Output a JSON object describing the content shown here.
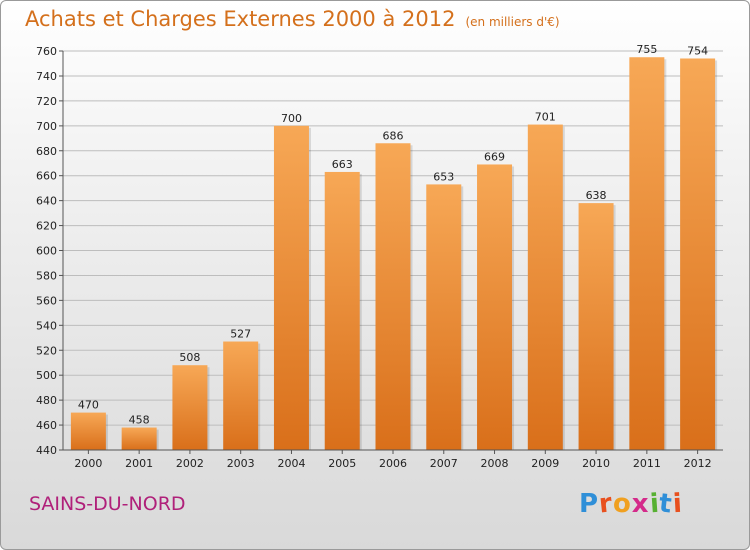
{
  "chart_data": {
    "type": "bar",
    "title": "Achats et Charges Externes 2000 à 2012",
    "subtitle": "(en milliers d'€)",
    "categories": [
      "2000",
      "2001",
      "2002",
      "2003",
      "2004",
      "2005",
      "2006",
      "2007",
      "2008",
      "2009",
      "2010",
      "2011",
      "2012"
    ],
    "values": [
      470,
      458,
      508,
      527,
      700,
      663,
      686,
      653,
      669,
      701,
      638,
      755,
      754
    ],
    "ylim": [
      440,
      760
    ],
    "yticks": [
      440,
      460,
      480,
      500,
      520,
      540,
      560,
      580,
      600,
      620,
      640,
      660,
      680,
      700,
      720,
      740,
      760
    ],
    "grid": true,
    "bar_color": "#f5a04e"
  },
  "footer": {
    "place": "SAINS-DU-NORD",
    "logo_letters": [
      "P",
      "r",
      "o",
      "x",
      "i",
      "t",
      "i"
    ],
    "logo_colors": [
      "#2f8fd8",
      "#e8501e",
      "#f0a020",
      "#d42a8a",
      "#57b032",
      "#2f8fd8",
      "#e8501e"
    ]
  }
}
